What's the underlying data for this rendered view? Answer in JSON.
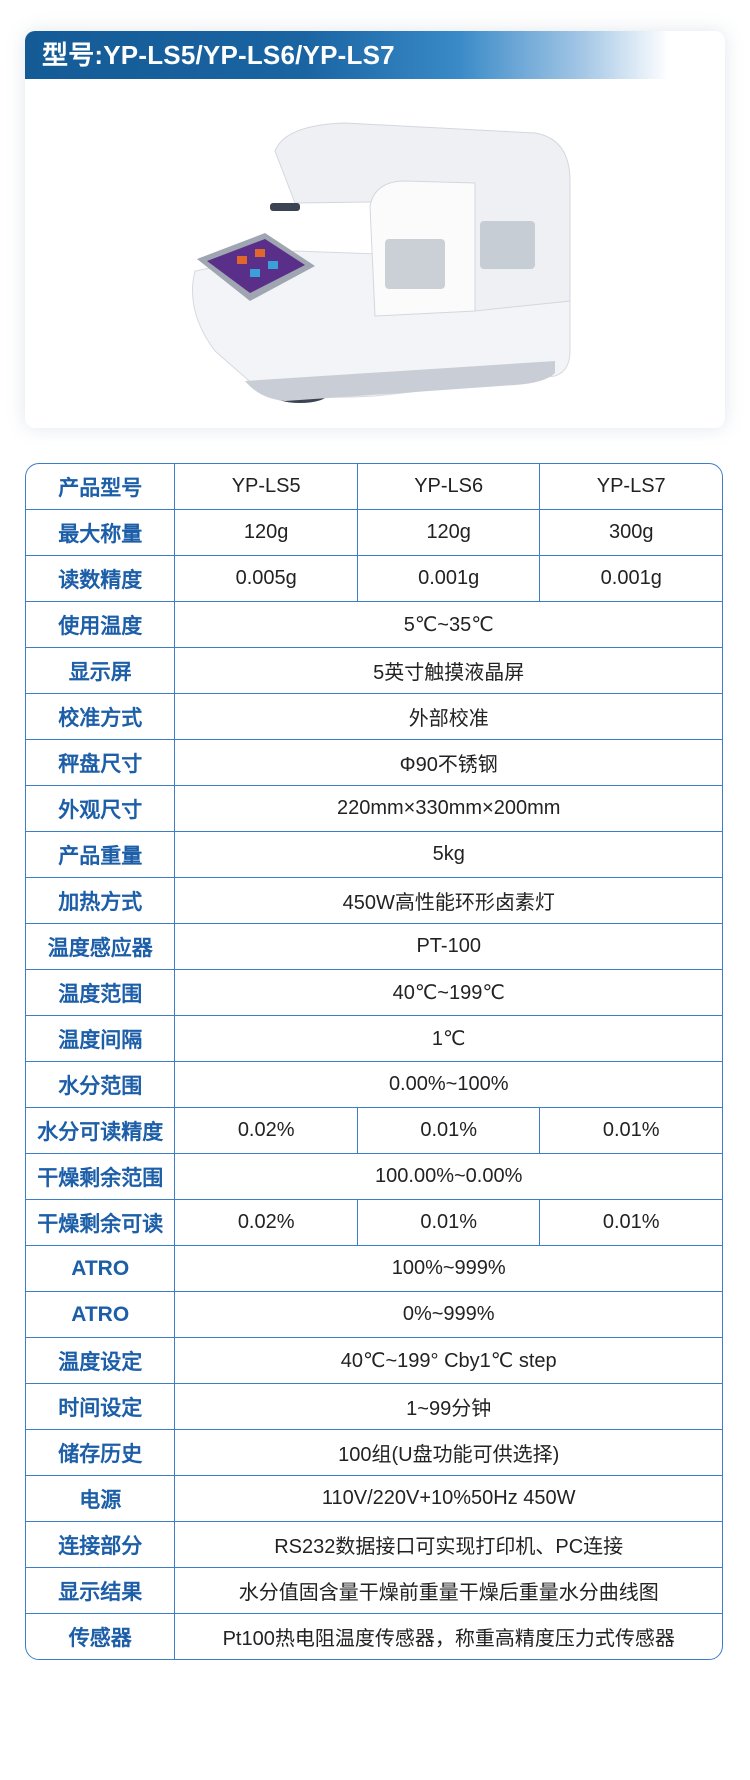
{
  "header": {
    "title": "型号:YP-LS5/YP-LS6/YP-LS7"
  },
  "colors": {
    "brand_blue": "#145b96",
    "border": "#3c7fc8",
    "label": "#1c5ea8"
  },
  "specs": [
    {
      "label": "产品型号",
      "values": [
        "YP-LS5",
        "YP-LS6",
        "YP-LS7"
      ]
    },
    {
      "label": "最大称量",
      "values": [
        "120g",
        "120g",
        "300g"
      ]
    },
    {
      "label": "读数精度",
      "values": [
        "0.005g",
        "0.001g",
        "0.001g"
      ]
    },
    {
      "label": "使用温度",
      "value": "5℃~35℃"
    },
    {
      "label": "显示屏",
      "value": "5英寸触摸液晶屏"
    },
    {
      "label": "校准方式",
      "value": "外部校准"
    },
    {
      "label": "秤盘尺寸",
      "value": "Φ90不锈钢"
    },
    {
      "label": "外观尺寸",
      "value": "220mm×330mm×200mm"
    },
    {
      "label": "产品重量",
      "value": "5kg"
    },
    {
      "label": "加热方式",
      "value": "450W高性能环形卤素灯"
    },
    {
      "label": "温度感应器",
      "value": "PT-100"
    },
    {
      "label": "温度范围",
      "value": "40℃~199℃"
    },
    {
      "label": "温度间隔",
      "value": "1℃"
    },
    {
      "label": "水分范围",
      "value": "0.00%~100%"
    },
    {
      "label": "水分可读精度",
      "values": [
        "0.02%",
        "0.01%",
        "0.01%"
      ]
    },
    {
      "label": "干燥剩余范围",
      "value": "100.00%~0.00%"
    },
    {
      "label": "干燥剩余可读",
      "values": [
        "0.02%",
        "0.01%",
        "0.01%"
      ]
    },
    {
      "label": "ATRO",
      "value": "100%~999%"
    },
    {
      "label": "ATRO",
      "value": "0%~999%"
    },
    {
      "label": "温度设定",
      "value": "40℃~199° Cby1℃ step"
    },
    {
      "label": "时间设定",
      "value": "1~99分钟"
    },
    {
      "label": "储存历史",
      "value": "100组(U盘功能可供选择)"
    },
    {
      "label": "电源",
      "value": "110V/220V+10%50Hz 450W"
    },
    {
      "label": "连接部分",
      "value": "RS232数据接口可实现打印机、PC连接"
    },
    {
      "label": "显示结果",
      "value": "水分值固含量干燥前重量干燥后重量水分曲线图"
    },
    {
      "label": "传感器",
      "value": "Pt100热电阻温度传感器，称重高精度压力式传感器"
    }
  ]
}
